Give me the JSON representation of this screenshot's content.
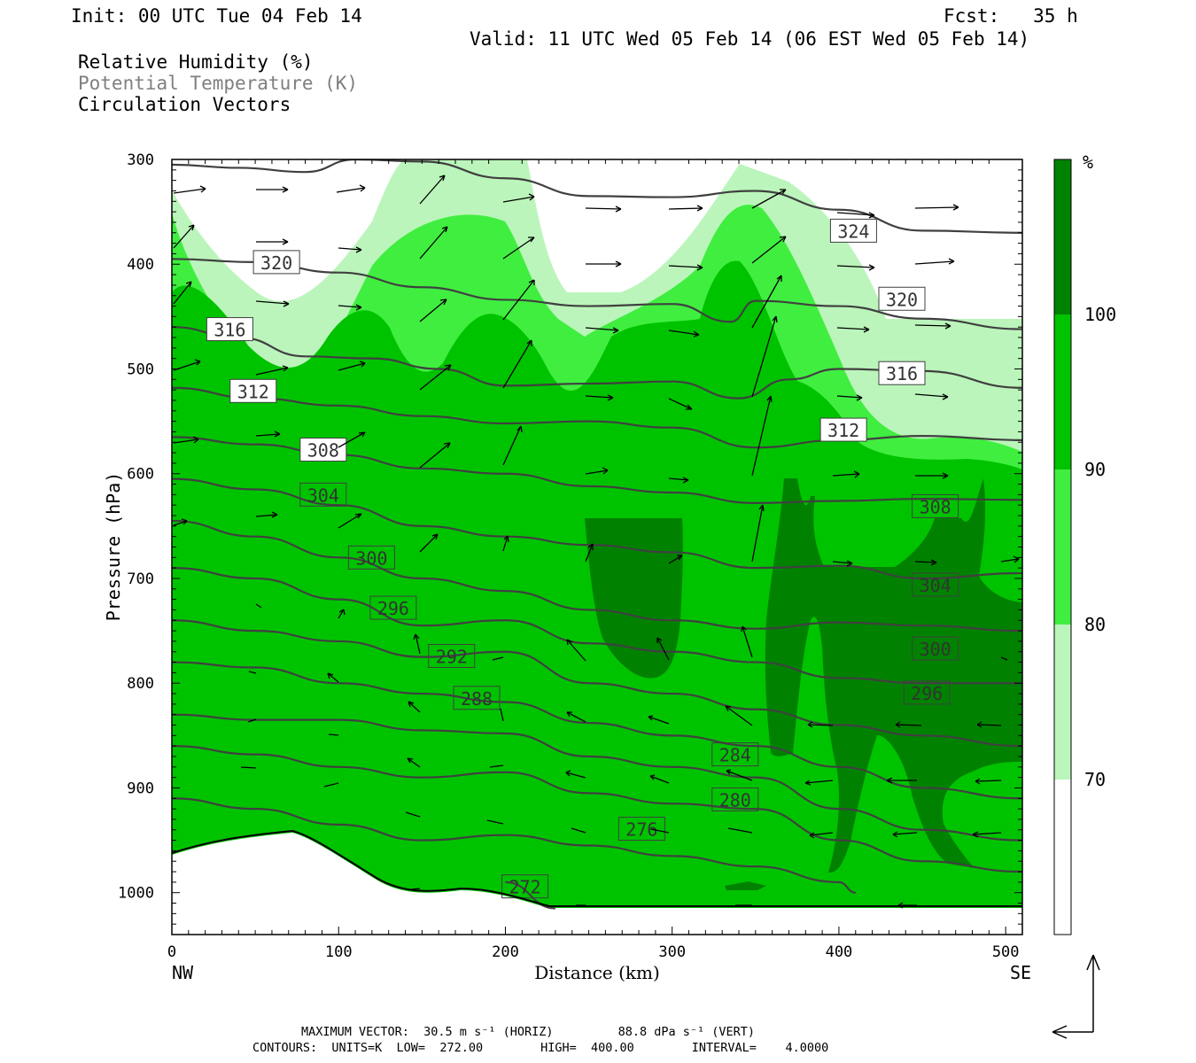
{
  "header": {
    "init": "Init: 00 UTC Tue 04 Feb 14",
    "fcst": "Fcst:   35 h",
    "valid": "Valid: 11 UTC Wed 05 Feb 14 (06 EST Wed 05 Feb 14)",
    "legend": [
      "Relative Humidity (%)",
      "Potential Temperature (K)",
      "Circulation Vectors"
    ]
  },
  "footer": {
    "max_vector": "MAXIMUM VECTOR:  30.5 m s⁻¹ (HORIZ)         88.8 dPa s⁻¹ (VERT)",
    "contours": "CONTOURS:  UNITS=K  LOW=  272.00        HIGH=  400.00        INTERVAL=    4.0000"
  },
  "colors": {
    "rh70": "#ffffff",
    "rh80": "#bbf5bb",
    "rh90": "#40ee40",
    "rh95": "#00c300",
    "rh100": "#008200",
    "contour": "#404040"
  },
  "chart_data": {
    "type": "cross-section",
    "xlabel": "Distance (km)",
    "ylabel": "Pressure (hPa)",
    "xlim": [
      0,
      510
    ],
    "ylim": [
      1040,
      300
    ],
    "x_ticks": [
      0,
      100,
      200,
      300,
      400,
      500
    ],
    "y_ticks": [
      300,
      400,
      500,
      600,
      700,
      800,
      900,
      1000
    ],
    "x_end_labels": {
      "left": "NW",
      "right": "SE"
    },
    "colorbar": {
      "unit": "%",
      "levels": [
        70,
        80,
        90,
        100
      ]
    },
    "theta_contours": [
      {
        "label": "324",
        "label_at": [
          396,
          368
        ],
        "points": [
          [
            0,
            305
          ],
          [
            40,
            308
          ],
          [
            80,
            312
          ],
          [
            110,
            300
          ],
          [
            150,
            302
          ],
          [
            200,
            318
          ],
          [
            250,
            335
          ],
          [
            300,
            336
          ],
          [
            350,
            330
          ],
          [
            400,
            348
          ],
          [
            450,
            368
          ],
          [
            510,
            370
          ]
        ]
      },
      {
        "label": "320",
        "label_at": [
          50,
          398
        ],
        "points": [
          [
            0,
            395
          ],
          [
            50,
            398
          ],
          [
            100,
            408
          ],
          [
            150,
            422
          ],
          [
            200,
            434
          ],
          [
            250,
            440
          ],
          [
            300,
            438
          ],
          [
            335,
            455
          ],
          [
            350,
            435
          ],
          [
            400,
            440
          ],
          [
            450,
            452
          ],
          [
            510,
            462
          ]
        ]
      },
      {
        "label": "320",
        "label_at": [
          425,
          433
        ],
        "points": []
      },
      {
        "label": "316",
        "label_at": [
          22,
          462
        ],
        "points": [
          [
            0,
            460
          ],
          [
            40,
            470
          ],
          [
            80,
            488
          ],
          [
            120,
            490
          ],
          [
            160,
            500
          ],
          [
            200,
            516
          ],
          [
            250,
            514
          ],
          [
            300,
            512
          ],
          [
            340,
            528
          ],
          [
            370,
            510
          ],
          [
            400,
            500
          ],
          [
            450,
            502
          ],
          [
            510,
            518
          ]
        ]
      },
      {
        "label": "316",
        "label_at": [
          425,
          504
        ],
        "points": []
      },
      {
        "label": "312",
        "label_at": [
          36,
          521
        ],
        "points": [
          [
            0,
            518
          ],
          [
            50,
            528
          ],
          [
            100,
            535
          ],
          [
            150,
            545
          ],
          [
            200,
            552
          ],
          [
            250,
            550
          ],
          [
            300,
            556
          ],
          [
            350,
            575
          ],
          [
            400,
            568
          ],
          [
            450,
            564
          ],
          [
            510,
            568
          ]
        ]
      },
      {
        "label": "312",
        "label_at": [
          390,
          558
        ],
        "points": []
      },
      {
        "label": "308",
        "label_at": [
          78,
          577
        ],
        "points": [
          [
            0,
            565
          ],
          [
            50,
            572
          ],
          [
            100,
            582
          ],
          [
            150,
            595
          ],
          [
            200,
            600
          ],
          [
            250,
            612
          ],
          [
            300,
            618
          ],
          [
            350,
            628
          ],
          [
            400,
            626
          ],
          [
            450,
            624
          ],
          [
            510,
            625
          ]
        ]
      },
      {
        "label": "308",
        "label_at": [
          445,
          631
        ],
        "points": []
      },
      {
        "label": "304",
        "label_at": [
          78,
          620
        ],
        "points": [
          [
            0,
            605
          ],
          [
            50,
            615
          ],
          [
            100,
            630
          ],
          [
            150,
            650
          ],
          [
            200,
            660
          ],
          [
            250,
            668
          ],
          [
            300,
            675
          ],
          [
            350,
            690
          ],
          [
            400,
            688
          ],
          [
            450,
            700
          ],
          [
            510,
            695
          ]
        ]
      },
      {
        "label": "304",
        "label_at": [
          445,
          706
        ],
        "points": []
      },
      {
        "label": "300",
        "label_at": [
          107,
          680
        ],
        "points": [
          [
            0,
            645
          ],
          [
            50,
            660
          ],
          [
            100,
            680
          ],
          [
            150,
            700
          ],
          [
            200,
            712
          ],
          [
            250,
            730
          ],
          [
            300,
            740
          ],
          [
            350,
            748
          ],
          [
            400,
            742
          ],
          [
            450,
            745
          ],
          [
            510,
            750
          ]
        ]
      },
      {
        "label": "300",
        "label_at": [
          445,
          767
        ],
        "points": []
      },
      {
        "label": "296",
        "label_at": [
          120,
          728
        ],
        "points": [
          [
            0,
            690
          ],
          [
            50,
            700
          ],
          [
            100,
            720
          ],
          [
            150,
            745
          ],
          [
            200,
            740
          ],
          [
            250,
            762
          ],
          [
            300,
            770
          ],
          [
            350,
            780
          ],
          [
            400,
            795
          ],
          [
            450,
            800
          ],
          [
            510,
            800
          ]
        ]
      },
      {
        "label": "296",
        "label_at": [
          440,
          809
        ],
        "points": []
      },
      {
        "label": "292",
        "label_at": [
          155,
          774
        ],
        "points": [
          [
            0,
            740
          ],
          [
            50,
            750
          ],
          [
            100,
            760
          ],
          [
            150,
            775
          ],
          [
            200,
            770
          ],
          [
            250,
            800
          ],
          [
            300,
            810
          ],
          [
            350,
            825
          ],
          [
            400,
            840
          ],
          [
            450,
            850
          ],
          [
            510,
            860
          ]
        ]
      },
      {
        "label": "288",
        "label_at": [
          170,
          814
        ],
        "points": [
          [
            0,
            780
          ],
          [
            50,
            785
          ],
          [
            100,
            800
          ],
          [
            150,
            810
          ],
          [
            200,
            818
          ],
          [
            250,
            838
          ],
          [
            300,
            850
          ],
          [
            350,
            860
          ],
          [
            400,
            880
          ],
          [
            450,
            900
          ],
          [
            510,
            910
          ]
        ]
      },
      {
        "label": "284",
        "label_at": [
          325,
          868
        ],
        "points": [
          [
            0,
            830
          ],
          [
            50,
            835
          ],
          [
            100,
            835
          ],
          [
            150,
            845
          ],
          [
            200,
            848
          ],
          [
            250,
            870
          ],
          [
            300,
            880
          ],
          [
            350,
            890
          ],
          [
            400,
            920
          ],
          [
            450,
            940
          ],
          [
            510,
            950
          ]
        ]
      },
      {
        "label": "280",
        "label_at": [
          325,
          911
        ],
        "points": [
          [
            0,
            860
          ],
          [
            50,
            868
          ],
          [
            100,
            880
          ],
          [
            150,
            890
          ],
          [
            200,
            885
          ],
          [
            250,
            905
          ],
          [
            300,
            915
          ],
          [
            350,
            920
          ],
          [
            400,
            950
          ],
          [
            450,
            970
          ],
          [
            510,
            980
          ]
        ]
      },
      {
        "label": "276",
        "label_at": [
          269,
          939
        ],
        "points": [
          [
            0,
            910
          ],
          [
            50,
            920
          ],
          [
            100,
            935
          ],
          [
            150,
            950
          ],
          [
            200,
            945
          ],
          [
            250,
            955
          ],
          [
            300,
            965
          ],
          [
            350,
            975
          ],
          [
            400,
            990
          ],
          [
            410,
            1000
          ]
        ]
      },
      {
        "label": "272",
        "label_at": [
          199,
          994
        ],
        "points": [
          [
            200,
            990
          ],
          [
            230,
            1015
          ]
        ]
      }
    ]
  }
}
